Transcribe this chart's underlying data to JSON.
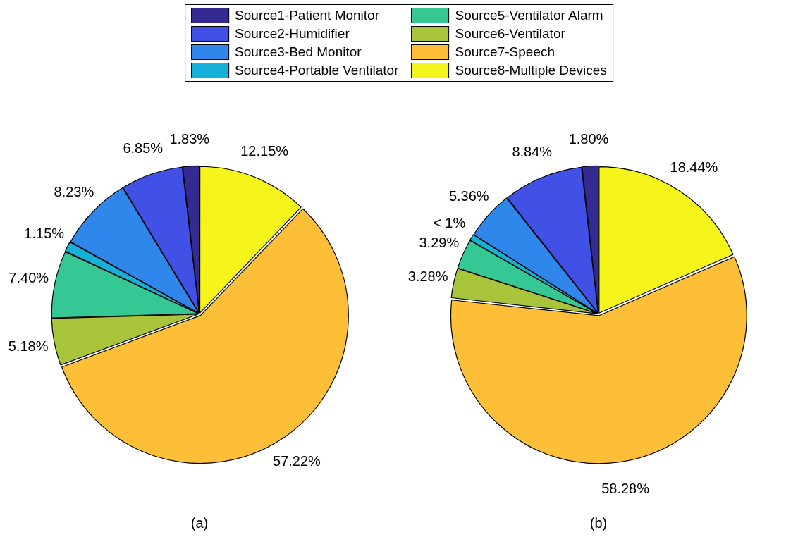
{
  "chart_data": [
    {
      "type": "pie",
      "title": "(a)",
      "legend": "top",
      "categories": [
        "Source1-Patient Monitor",
        "Source2-Humidifier",
        "Source3-Bed Monitor",
        "Source4-Portable Ventilator",
        "Source5-Ventilator Alarm",
        "Source6-Ventilator",
        "Source7-Speech",
        "Source8-Multiple Devices"
      ],
      "values": [
        1.83,
        6.85,
        8.23,
        1.15,
        7.4,
        5.18,
        57.22,
        12.15
      ],
      "value_labels": [
        "1.83%",
        "6.85%",
        "8.23%",
        "1.15%",
        "7.40%",
        "5.18%",
        "57.22%",
        "12.15%"
      ],
      "colors": [
        "#352a91",
        "#4151e6",
        "#2f87ec",
        "#14b1d8",
        "#35c895",
        "#a7c43a",
        "#fdbf38",
        "#f5f51b"
      ]
    },
    {
      "type": "pie",
      "title": "(b)",
      "categories": [
        null,
        null,
        null,
        null,
        null,
        null,
        null,
        null
      ],
      "values": [
        1.8,
        8.84,
        5.36,
        0.71,
        3.29,
        3.28,
        58.28,
        18.44
      ],
      "value_labels": [
        "1.80%",
        "8.84%",
        "5.36%",
        "< 1%",
        "3.29%",
        "3.28%",
        "58.28%",
        "18.44%"
      ],
      "colors": [
        "#352a91",
        "#4151e6",
        "#2f87ec",
        "#14b1d8",
        "#35c895",
        "#a7c43a",
        "#fdbf38",
        "#f5f51b"
      ]
    }
  ]
}
